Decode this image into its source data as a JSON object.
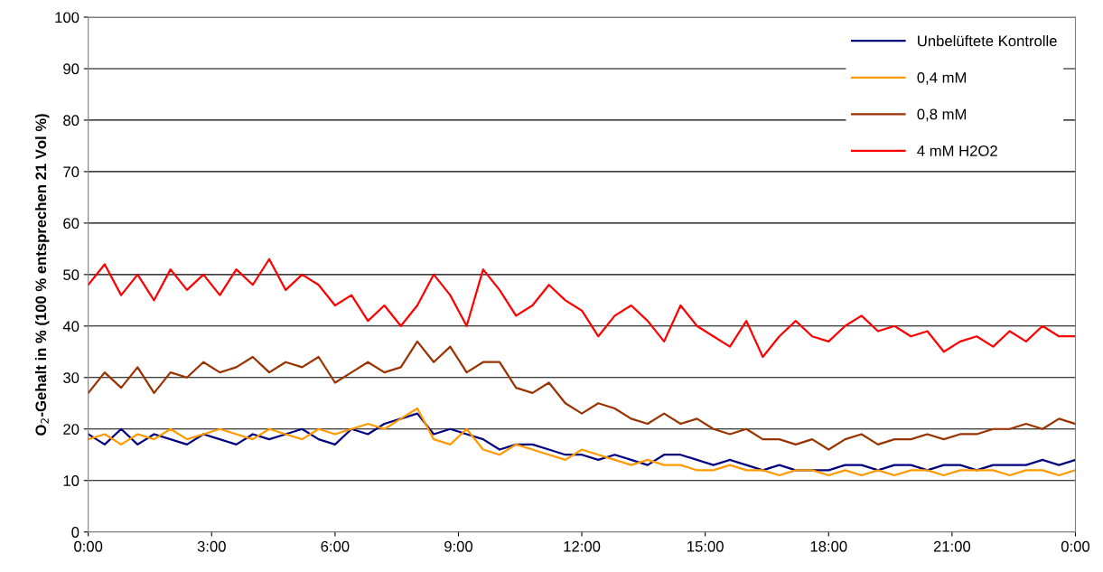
{
  "chart_data": {
    "type": "line",
    "ylabel": "O$_{2}$-Gehalt in % (100 % entsprechen 21 Vol %)",
    "x": [
      0,
      0.4,
      0.8,
      1.2,
      1.6,
      2.0,
      2.4,
      2.8,
      3.2,
      3.6,
      4.0,
      4.4,
      4.8,
      5.2,
      5.6,
      6.0,
      6.4,
      6.8,
      7.2,
      7.6,
      8.0,
      8.4,
      8.8,
      9.2,
      9.6,
      10.0,
      10.4,
      10.8,
      11.2,
      11.6,
      12.0,
      12.4,
      12.8,
      13.2,
      13.6,
      14.0,
      14.4,
      14.8,
      15.2,
      15.6,
      16.0,
      16.4,
      16.8,
      17.2,
      17.6,
      18.0,
      18.4,
      18.8,
      19.2,
      19.6,
      20.0,
      20.4,
      20.8,
      21.2,
      21.6,
      22.0,
      22.4,
      22.8,
      23.2,
      23.6,
      24.0
    ],
    "series": [
      {
        "name": "Unbelüftete Kontrolle",
        "color": "#000080",
        "values": [
          19,
          17,
          20,
          17,
          19,
          18,
          17,
          19,
          18,
          17,
          19,
          18,
          19,
          20,
          18,
          17,
          20,
          19,
          21,
          22,
          23,
          19,
          20,
          19,
          18,
          16,
          17,
          17,
          16,
          15,
          15,
          14,
          15,
          14,
          13,
          15,
          15,
          14,
          13,
          14,
          13,
          12,
          13,
          12,
          12,
          12,
          13,
          13,
          12,
          13,
          13,
          12,
          13,
          13,
          12,
          13,
          13,
          13,
          14,
          13,
          14
        ]
      },
      {
        "name": "0,4 mM",
        "color": "#ff9900",
        "values": [
          18,
          19,
          17,
          19,
          18,
          20,
          18,
          19,
          20,
          19,
          18,
          20,
          19,
          18,
          20,
          19,
          20,
          21,
          20,
          22,
          24,
          18,
          17,
          20,
          16,
          15,
          17,
          16,
          15,
          14,
          16,
          15,
          14,
          13,
          14,
          13,
          13,
          12,
          12,
          13,
          12,
          12,
          11,
          12,
          12,
          11,
          12,
          11,
          12,
          11,
          12,
          12,
          11,
          12,
          12,
          12,
          11,
          12,
          12,
          11,
          12
        ]
      },
      {
        "name": "0,8 mM",
        "color": "#993300",
        "values": [
          27,
          31,
          28,
          32,
          27,
          31,
          30,
          33,
          31,
          32,
          34,
          31,
          33,
          32,
          34,
          29,
          31,
          33,
          31,
          32,
          37,
          33,
          36,
          31,
          33,
          33,
          28,
          27,
          29,
          25,
          23,
          25,
          24,
          22,
          21,
          23,
          21,
          22,
          20,
          19,
          20,
          18,
          18,
          17,
          18,
          16,
          18,
          19,
          17,
          18,
          18,
          19,
          18,
          19,
          19,
          20,
          20,
          21,
          20,
          22,
          21
        ]
      },
      {
        "name": "4 mM H2O2",
        "color": "#ff0000",
        "values": [
          48,
          52,
          46,
          50,
          45,
          51,
          47,
          50,
          46,
          51,
          48,
          53,
          47,
          50,
          48,
          44,
          46,
          41,
          44,
          40,
          44,
          50,
          46,
          40,
          51,
          47,
          42,
          44,
          48,
          45,
          43,
          38,
          42,
          44,
          41,
          37,
          44,
          40,
          38,
          36,
          41,
          34,
          38,
          41,
          38,
          37,
          40,
          42,
          39,
          40,
          38,
          39,
          35,
          37,
          38,
          36,
          39,
          37,
          40,
          38,
          38
        ]
      }
    ],
    "xlim": [
      0,
      24
    ],
    "xticks": [
      {
        "value": 0,
        "label": "0:00"
      },
      {
        "value": 3,
        "label": "3:00"
      },
      {
        "value": 6,
        "label": "6:00"
      },
      {
        "value": 9,
        "label": "9:00"
      },
      {
        "value": 12,
        "label": "12:00"
      },
      {
        "value": 15,
        "label": "15:00"
      },
      {
        "value": 18,
        "label": "18:00"
      },
      {
        "value": 21,
        "label": "21:00"
      },
      {
        "value": 24,
        "label": "0:00"
      }
    ],
    "ylim": [
      0,
      100
    ],
    "yticks": [
      0,
      10,
      20,
      30,
      40,
      50,
      60,
      70,
      80,
      90,
      100
    ],
    "grid": "y",
    "legend": "top right",
    "line_style": "solid",
    "marker": "none"
  }
}
